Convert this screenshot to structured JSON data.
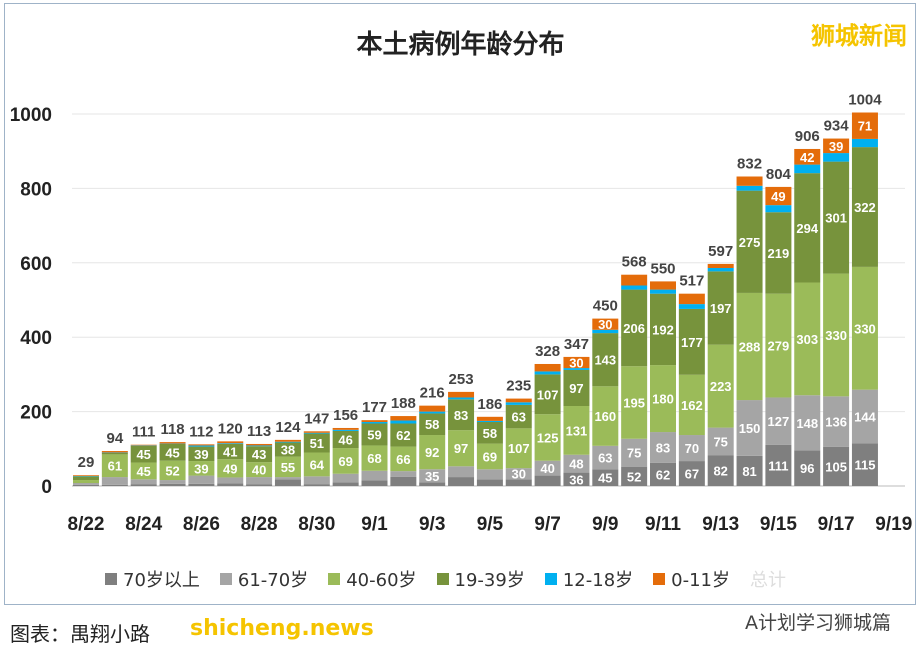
{
  "title": "本土病例年龄分布",
  "watermark": "狮城新闻",
  "footer": {
    "caption": "图表：禺翔小路",
    "site": "shicheng.news",
    "account": "A计划学习狮城篇",
    "total_legend": "总计"
  },
  "chart_data": {
    "type": "bar",
    "stacked": true,
    "title": "本土病例年龄分布",
    "ylim": [
      0,
      1000
    ],
    "yticks": [
      0,
      200,
      400,
      600,
      800,
      1000
    ],
    "grid": true,
    "legend_placement": "bottom",
    "categories": [
      "8/22",
      "8/23",
      "8/24",
      "8/25",
      "8/26",
      "8/27",
      "8/28",
      "8/29",
      "8/30",
      "8/31",
      "9/1",
      "9/2",
      "9/3",
      "9/4",
      "9/5",
      "9/6",
      "9/7",
      "9/8",
      "9/9",
      "9/10",
      "9/11",
      "9/12",
      "9/13",
      "9/14",
      "9/15",
      "9/16",
      "9/17",
      "9/18"
    ],
    "xtick_labels": [
      "8/22",
      "8/24",
      "8/26",
      "8/28",
      "8/30",
      "9/1",
      "9/3",
      "9/5",
      "9/7",
      "9/9",
      "9/11",
      "9/13",
      "9/15",
      "9/17",
      "9/19"
    ],
    "totals": [
      29,
      94,
      111,
      118,
      112,
      120,
      113,
      124,
      147,
      156,
      177,
      188,
      216,
      253,
      186,
      235,
      328,
      347,
      450,
      568,
      550,
      517,
      597,
      832,
      804,
      906,
      934,
      1004
    ],
    "series": [
      {
        "name": "70岁以上",
        "color": "#7f7f7f",
        "values": [
          3,
          3,
          5,
          6,
          6,
          7,
          4,
          18,
          5,
          10,
          15,
          25,
          10,
          24,
          18,
          18,
          28,
          36,
          45,
          52,
          62,
          67,
          82,
          81,
          111,
          96,
          105,
          115
        ]
      },
      {
        "name": "61-70岁",
        "color": "#a5a5a5",
        "values": [
          5,
          21,
          13,
          10,
          22,
          16,
          20,
          6,
          21,
          23,
          26,
          15,
          35,
          29,
          27,
          30,
          40,
          48,
          63,
          75,
          83,
          70,
          75,
          150,
          127,
          148,
          136,
          144
        ]
      },
      {
        "name": "40-60岁",
        "color": "#9bbb59",
        "values": [
          8,
          61,
          45,
          52,
          39,
          49,
          40,
          55,
          64,
          69,
          68,
          66,
          92,
          97,
          69,
          107,
          125,
          131,
          160,
          195,
          180,
          162,
          223,
          288,
          279,
          303,
          330,
          330
        ]
      },
      {
        "name": "19-39岁",
        "color": "#77933c",
        "values": [
          10,
          4,
          45,
          45,
          39,
          41,
          43,
          38,
          51,
          46,
          59,
          62,
          58,
          83,
          58,
          63,
          107,
          97,
          143,
          206,
          192,
          177,
          197,
          275,
          219,
          294,
          301,
          322
        ]
      },
      {
        "name": "12-18岁",
        "color": "#00b0f0",
        "values": [
          1,
          1,
          1,
          1,
          3,
          2,
          2,
          2,
          2,
          3,
          4,
          8,
          5,
          5,
          3,
          7,
          8,
          5,
          9,
          11,
          11,
          13,
          9,
          13,
          19,
          23,
          23,
          22
        ]
      },
      {
        "name": "0-11岁",
        "color": "#e46c0a",
        "values": [
          2,
          4,
          2,
          4,
          3,
          5,
          4,
          5,
          4,
          5,
          5,
          12,
          16,
          15,
          11,
          10,
          20,
          30,
          30,
          29,
          22,
          28,
          11,
          25,
          49,
          42,
          39,
          71
        ]
      }
    ]
  }
}
